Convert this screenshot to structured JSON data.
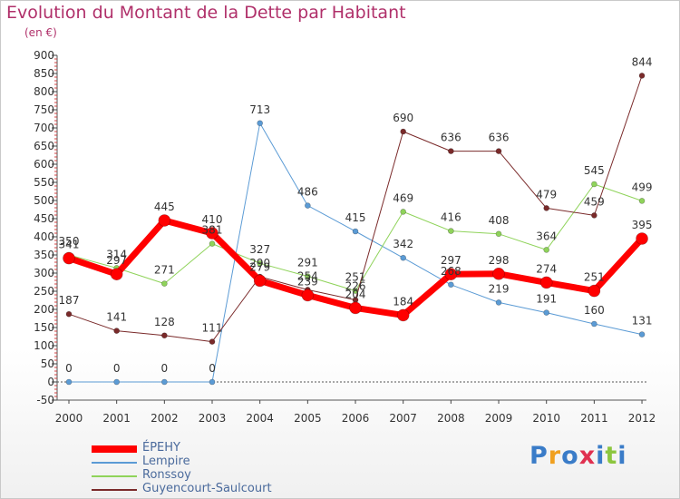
{
  "chart_data": {
    "type": "line",
    "title": "Evolution du Montant de la Dette par Habitant",
    "subtitle": "(en €)",
    "categories": [
      "2000",
      "2001",
      "2002",
      "2003",
      "2004",
      "2005",
      "2006",
      "2007",
      "2008",
      "2009",
      "2010",
      "2011",
      "2012"
    ],
    "y_ticks": [
      "-50",
      "0",
      "50",
      "100",
      "150",
      "200",
      "250",
      "300",
      "350",
      "400",
      "450",
      "500",
      "550",
      "600",
      "650",
      "700",
      "750",
      "800",
      "850",
      "900"
    ],
    "ylim": [
      -50,
      900
    ],
    "grid": false,
    "legend_position": "bottom-left",
    "series": [
      {
        "name": "ÉPEHY",
        "color": "#ff0000",
        "values": [
          341,
          297,
          445,
          410,
          279,
          239,
          204,
          184,
          297,
          298,
          274,
          251,
          395
        ],
        "labels": [
          "341",
          "297",
          "445",
          "410",
          "279",
          "239",
          "204",
          "184",
          "297",
          "298",
          "274",
          "251",
          "395"
        ]
      },
      {
        "name": "Lempire",
        "color": "#5b9bd5",
        "values": [
          0,
          0,
          0,
          0,
          713,
          486,
          415,
          342,
          268,
          219,
          191,
          160,
          131
        ],
        "labels": [
          "0",
          "0",
          "0",
          "0",
          "713",
          "486",
          "415",
          "342",
          "268",
          "219",
          "191",
          "160",
          "131"
        ]
      },
      {
        "name": "Ronssoy",
        "color": "#8fd35a",
        "values": [
          350,
          314,
          271,
          381,
          327,
          291,
          251,
          469,
          416,
          408,
          364,
          545,
          499
        ],
        "labels": [
          "350",
          "314",
          "271",
          "381",
          "327",
          "291",
          "251",
          "469",
          "416",
          "408",
          "364",
          "545",
          "499"
        ]
      },
      {
        "name": "Guyencourt-Saulcourt",
        "color": "#7a2a2a",
        "values": [
          187,
          141,
          128,
          111,
          290,
          254,
          226,
          690,
          636,
          636,
          479,
          459,
          844
        ],
        "labels": [
          "187",
          "141",
          "128",
          "111",
          "290",
          "254",
          "226",
          "690",
          "636",
          "636",
          "479",
          "459",
          "844"
        ]
      }
    ]
  },
  "logo": {
    "letters": [
      {
        "ch": "P",
        "color": "#3a7cc8"
      },
      {
        "ch": "r",
        "color": "#f0a020"
      },
      {
        "ch": "o",
        "color": "#3a7cc8"
      },
      {
        "ch": "x",
        "color": "#e03050"
      },
      {
        "ch": "i",
        "color": "#3a7cc8"
      },
      {
        "ch": "t",
        "color": "#8cc63f"
      },
      {
        "ch": "i",
        "color": "#3a7cc8"
      }
    ]
  }
}
